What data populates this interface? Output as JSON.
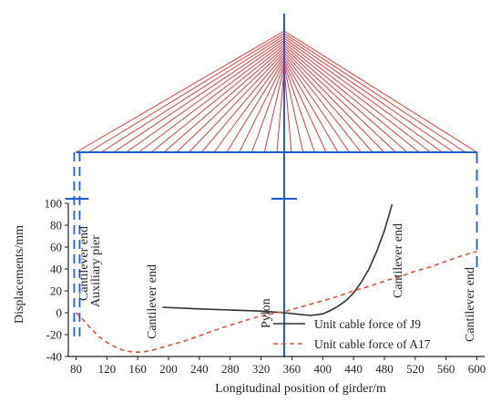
{
  "colors": {
    "cable": "#e23b3b",
    "structure": "#1f5bd6",
    "series_j9": "#333333",
    "series_a17": "#d9533a",
    "axis": "#222222"
  },
  "annotations": {
    "cantilever_end_left": "Cantilever end",
    "auxiliary_pier": "Auxiliary pier",
    "cantilever_end_mid": "Cantilever end",
    "pylon": "Pylon",
    "cantilever_end_right1": "Cantilever end",
    "cantilever_end_right2": "Cantilever end"
  },
  "chart_data": {
    "type": "line",
    "xlabel": "Longitudinal position of girder/m",
    "ylabel": "Displacements/mm",
    "xlim": [
      70,
      610
    ],
    "ylim": [
      -40,
      100
    ],
    "xticks": [
      80,
      120,
      160,
      200,
      240,
      280,
      320,
      360,
      400,
      440,
      480,
      520,
      560,
      600
    ],
    "yticks": [
      -40,
      -20,
      0,
      20,
      40,
      60,
      80,
      100
    ],
    "grid": false,
    "legend_position": "bottom-right",
    "series": [
      {
        "name": "Unit cable force of J9",
        "line_style": "solid",
        "x": [
          192,
          240,
          280,
          320,
          350,
          370,
          385,
          400,
          410,
          420,
          430,
          440,
          450,
          460,
          470,
          480,
          490
        ],
        "y": [
          5,
          3.5,
          2.5,
          1.5,
          0,
          -1.5,
          -2.5,
          -1,
          2,
          6,
          11,
          18,
          28,
          40,
          56,
          75,
          99
        ]
      },
      {
        "name": "Unit cable force of A17",
        "line_style": "dashed",
        "x": [
          80,
          90,
          100,
          110,
          120,
          130,
          140,
          150,
          160,
          170,
          180,
          190,
          200,
          220,
          240,
          260,
          280,
          300,
          320,
          340,
          350,
          360,
          380,
          400,
          420,
          440,
          460,
          480,
          500,
          520,
          540,
          560,
          580,
          600
        ],
        "y": [
          0,
          -7,
          -15,
          -22,
          -27,
          -31,
          -34,
          -35.5,
          -36,
          -35.5,
          -34,
          -32,
          -30,
          -26,
          -21,
          -16,
          -11.5,
          -7,
          -3,
          0,
          1,
          3,
          7,
          11,
          15,
          20,
          24,
          29,
          33,
          38,
          42,
          47,
          52,
          56
        ]
      }
    ]
  }
}
